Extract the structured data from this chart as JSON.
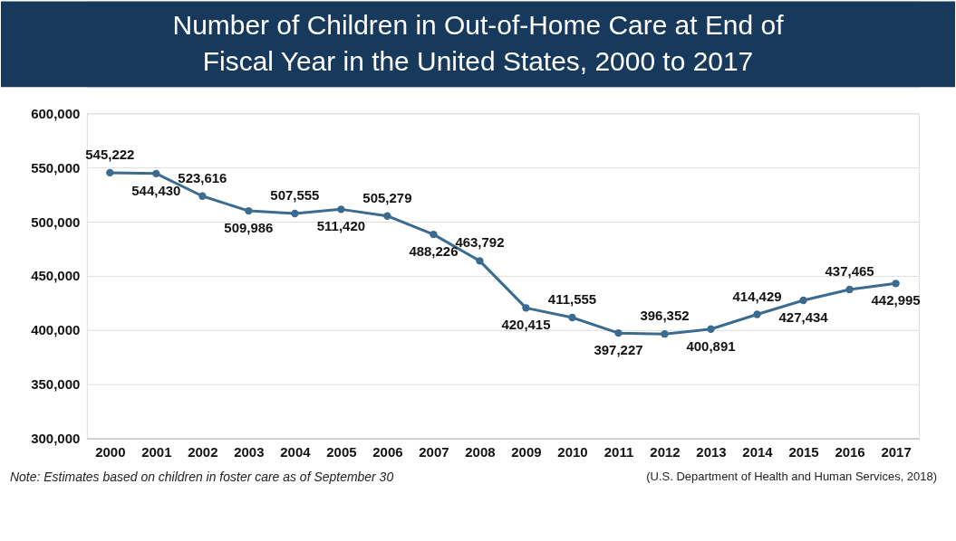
{
  "chart_data": {
    "type": "line",
    "title": "Number of Children in Out-of-Home Care at End of Fiscal Year in the United States, 2000 to 2017",
    "categories": [
      "2000",
      "2001",
      "2002",
      "2003",
      "2004",
      "2005",
      "2006",
      "2007",
      "2008",
      "2009",
      "2010",
      "2011",
      "2012",
      "2013",
      "2014",
      "2015",
      "2016",
      "2017"
    ],
    "series": [
      {
        "color": "#3b6b8f",
        "values": [
          545222,
          544430,
          523616,
          509986,
          507555,
          511420,
          505279,
          488226,
          463792,
          420415,
          411555,
          397227,
          396352,
          400891,
          414429,
          427434,
          437465,
          442995
        ],
        "value_labels": [
          "545,222",
          "544,430",
          "523,616",
          "509,986",
          "507,555",
          "511,420",
          "505,279",
          "488,226",
          "463,792",
          "420,415",
          "411,555",
          "397,227",
          "396,352",
          "400,891",
          "414,429",
          "427,434",
          "437,465",
          "442,995"
        ]
      }
    ],
    "ylim": [
      300000,
      600000
    ],
    "yticks": [
      {
        "value": 300000,
        "label": "300,000"
      },
      {
        "value": 350000,
        "label": "350,000"
      },
      {
        "value": 400000,
        "label": "400,000"
      },
      {
        "value": 450000,
        "label": "450,000"
      },
      {
        "value": 500000,
        "label": "500,000"
      },
      {
        "value": 550000,
        "label": "550,000"
      },
      {
        "value": 600000,
        "label": "600,000"
      }
    ],
    "grid": "y",
    "marker": "circle",
    "line_style": "solid",
    "annotations": [
      "Note: Estimates based on children in foster care as of September 30",
      "(U.S. Department of Health and Human Services, 2018)"
    ]
  }
}
